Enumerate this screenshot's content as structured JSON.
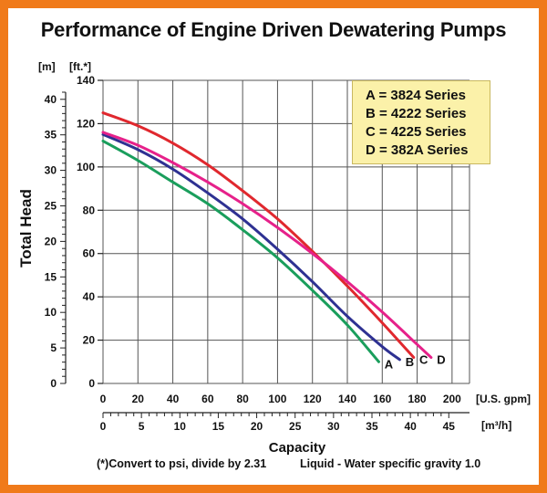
{
  "title": "Performance of Engine Driven Dewatering Pumps",
  "chart_data": {
    "type": "line",
    "title": "Performance of Engine Driven Dewatering Pumps",
    "ylabel": "Total Head",
    "xlabel": "Capacity",
    "y_unit_ft": "[ft.*]",
    "y_unit_m": "[m]",
    "x_unit_gpm": "[U.S. gpm]",
    "x_unit_m3h": "[m³/h]",
    "ylim_ft": [
      0,
      140
    ],
    "xlim_gpm": [
      0,
      210
    ],
    "y_ticks_ft": [
      "0",
      "20",
      "40",
      "60",
      "80",
      "100",
      "120",
      "140"
    ],
    "y_ticks_m": [
      "0",
      "5",
      "10",
      "15",
      "20",
      "25",
      "30",
      "35",
      "40"
    ],
    "x_ticks_gpm": [
      "0",
      "20",
      "40",
      "60",
      "80",
      "100",
      "120",
      "140",
      "160",
      "180",
      "200"
    ],
    "x_ticks_m3h": [
      "0",
      "5",
      "10",
      "15",
      "20",
      "25",
      "30",
      "35",
      "40",
      "45"
    ],
    "grid": true,
    "legend_position": "top-right",
    "series": [
      {
        "name": "A",
        "color": "#1a9e5c",
        "x": [
          0,
          20,
          40,
          60,
          80,
          100,
          120,
          140,
          158
        ],
        "y": [
          112,
          103,
          93,
          83,
          71,
          58,
          43,
          27,
          10
        ]
      },
      {
        "name": "B",
        "color": "#2e3192",
        "x": [
          0,
          20,
          40,
          60,
          80,
          100,
          120,
          140,
          160,
          170
        ],
        "y": [
          115,
          108,
          99,
          88,
          76,
          62,
          47,
          31,
          17,
          11
        ]
      },
      {
        "name": "C",
        "color": "#e0282e",
        "x": [
          0,
          20,
          40,
          60,
          80,
          100,
          120,
          140,
          160,
          178
        ],
        "y": [
          125,
          119,
          111,
          101,
          89,
          76,
          61,
          45,
          28,
          12
        ]
      },
      {
        "name": "D",
        "color": "#e6218a",
        "x": [
          0,
          20,
          40,
          60,
          80,
          100,
          120,
          140,
          160,
          180,
          188
        ],
        "y": [
          116,
          110,
          102,
          93,
          83,
          72,
          60,
          47,
          33,
          18,
          12
        ]
      }
    ]
  },
  "legend": [
    "A = 3824 Series",
    "B = 4222 Series",
    "C = 4225 Series",
    "D = 382A Series"
  ],
  "footnote_left": "(*)Convert to psi, divide by 2.31",
  "footnote_right": "Liquid - Water specific gravity 1.0"
}
